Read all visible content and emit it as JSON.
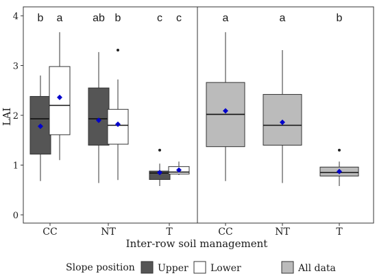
{
  "chart_data": {
    "type": "box",
    "ylabel": "LAI",
    "xlabel": "Inter-row soil management",
    "ylim": [
      0,
      4
    ],
    "yticks": [
      "0",
      "1",
      "2",
      "3",
      "4"
    ],
    "grid": false,
    "legend": {
      "placement": "bottom",
      "title": "Slope position",
      "entries": [
        {
          "label": "Upper",
          "color": "#555555"
        },
        {
          "label": "Lower",
          "color": "#ffffff"
        },
        {
          "label": "All data",
          "color": "#bbbbbb"
        }
      ]
    },
    "mean_marker_color": "#0000cc",
    "panels": [
      {
        "categories": [
          "CC",
          "NT",
          "T"
        ],
        "boxes": [
          {
            "category": "CC",
            "group": "Upper",
            "letter": "b",
            "min": 0.68,
            "q1": 1.22,
            "median": 1.93,
            "q3": 2.38,
            "max": 2.8,
            "mean": 1.78,
            "outliers": []
          },
          {
            "category": "CC",
            "group": "Lower",
            "letter": "a",
            "min": 1.1,
            "q1": 1.61,
            "median": 2.2,
            "q3": 2.98,
            "max": 3.67,
            "mean": 2.36,
            "outliers": []
          },
          {
            "category": "NT",
            "group": "Upper",
            "letter": "ab",
            "min": 0.64,
            "q1": 1.4,
            "median": 1.93,
            "q3": 2.55,
            "max": 3.27,
            "mean": 1.9,
            "outliers": []
          },
          {
            "category": "NT",
            "group": "Lower",
            "letter": "b",
            "min": 0.7,
            "q1": 1.42,
            "median": 1.8,
            "q3": 2.12,
            "max": 2.72,
            "mean": 1.82,
            "outliers": [
              3.31
            ]
          },
          {
            "category": "T",
            "group": "Upper",
            "letter": "c",
            "min": 0.58,
            "q1": 0.71,
            "median": 0.84,
            "q3": 0.88,
            "max": 1.03,
            "mean": 0.85,
            "outliers": [
              1.3
            ]
          },
          {
            "category": "T",
            "group": "Lower",
            "letter": "c",
            "min": 0.8,
            "q1": 0.82,
            "median": 0.86,
            "q3": 0.97,
            "max": 1.07,
            "mean": 0.9,
            "outliers": []
          }
        ]
      },
      {
        "categories": [
          "CC",
          "NT",
          "T"
        ],
        "boxes": [
          {
            "category": "CC",
            "group": "All data",
            "letter": "a",
            "min": 0.68,
            "q1": 1.37,
            "median": 2.02,
            "q3": 2.66,
            "max": 3.67,
            "mean": 2.09,
            "outliers": []
          },
          {
            "category": "NT",
            "group": "All data",
            "letter": "a",
            "min": 0.64,
            "q1": 1.4,
            "median": 1.8,
            "q3": 2.42,
            "max": 3.31,
            "mean": 1.86,
            "outliers": []
          },
          {
            "category": "T",
            "group": "All data",
            "letter": "b",
            "min": 0.58,
            "q1": 0.78,
            "median": 0.85,
            "q3": 0.96,
            "max": 1.07,
            "mean": 0.87,
            "outliers": [
              1.3
            ]
          }
        ]
      }
    ]
  }
}
